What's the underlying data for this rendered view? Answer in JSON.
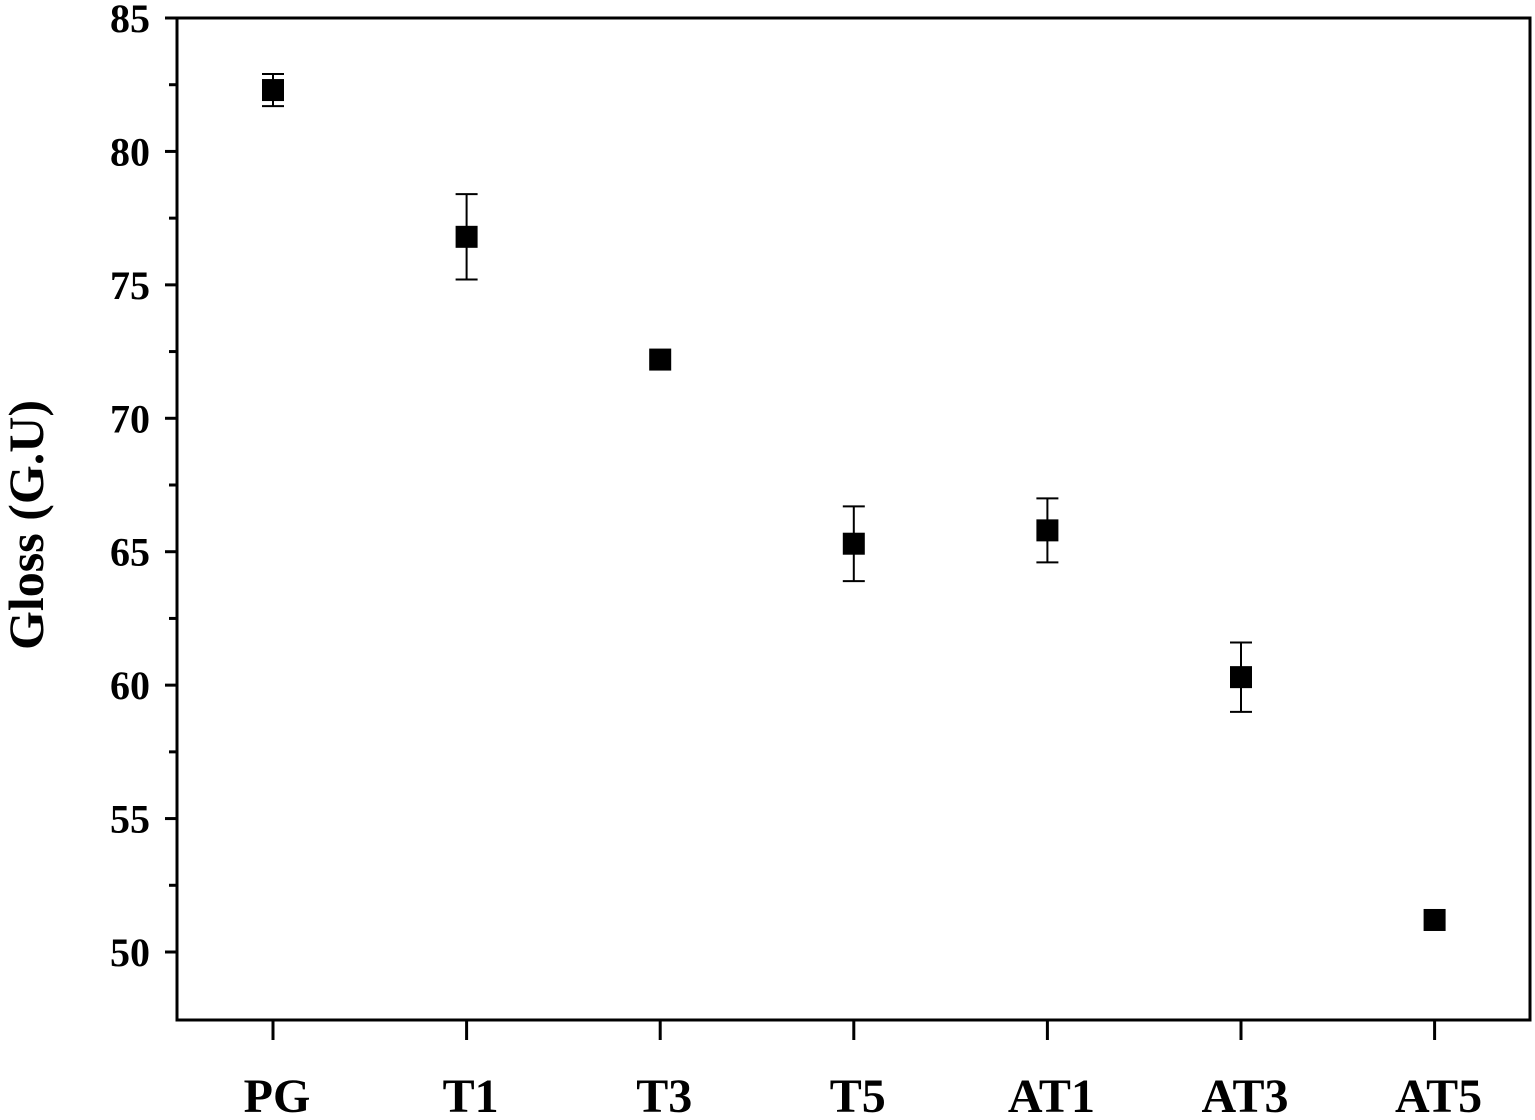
{
  "chart_data": {
    "type": "scatter",
    "title": "",
    "xlabel": "",
    "ylabel": "Gloss (G.U)",
    "categories": [
      "PG",
      "T1",
      "T3",
      "T5",
      "AT1",
      "AT3",
      "AT5"
    ],
    "series": [
      {
        "values": [
          82.3,
          76.8,
          72.2,
          65.3,
          65.8,
          60.3,
          51.2
        ],
        "errors": [
          0.6,
          1.6,
          0.0,
          1.4,
          1.2,
          1.3,
          0.0
        ]
      }
    ],
    "ylim": [
      47.5,
      85
    ],
    "yticks": [
      50,
      55,
      60,
      65,
      70,
      75,
      80,
      85
    ],
    "ytick_labels": [
      "50",
      "55",
      "60",
      "65",
      "70",
      "75",
      "80",
      "85"
    ],
    "grid": false,
    "marker": "square",
    "marker_color": "#000000"
  }
}
